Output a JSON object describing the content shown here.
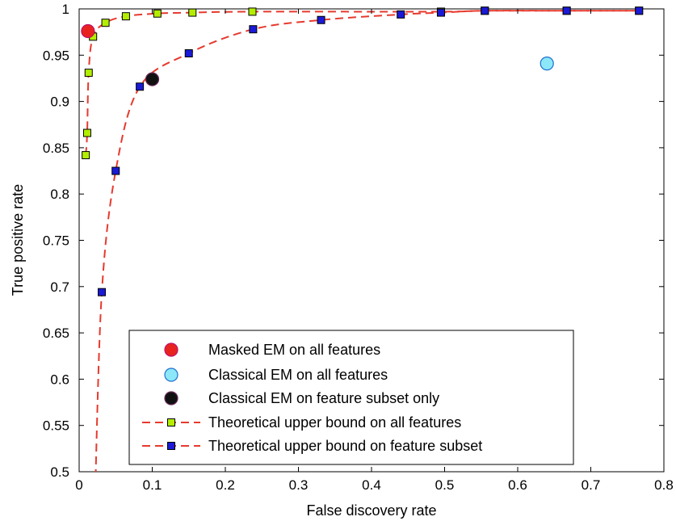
{
  "chart_data": {
    "type": "scatter",
    "xlabel": "False discovery rate",
    "ylabel": "True positive rate",
    "xlim": [
      0,
      0.8
    ],
    "ylim": [
      0.5,
      1
    ],
    "xticks": [
      "0",
      "0.1",
      "0.2",
      "0.3",
      "0.4",
      "0.5",
      "0.6",
      "0.7",
      "0.8"
    ],
    "yticks": [
      "0.5",
      "0.55",
      "0.6",
      "0.65",
      "0.7",
      "0.75",
      "0.8",
      "0.85",
      "0.9",
      "0.95",
      "1"
    ],
    "grid": false,
    "legend_position": "lower-right",
    "series": [
      {
        "name": "Masked EM on all features",
        "kind": "point",
        "marker": "circle",
        "color": "#e8231f",
        "edge": "#c0106a",
        "x": [
          0.012
        ],
        "y": [
          0.976
        ]
      },
      {
        "name": "Classical EM on all features",
        "kind": "point",
        "marker": "circle",
        "color": "#8ce8f8",
        "edge": "#1f6fd0",
        "x": [
          0.64
        ],
        "y": [
          0.941
        ]
      },
      {
        "name": "Classical EM on feature subset only",
        "kind": "point",
        "marker": "circle",
        "color": "#111111",
        "edge": "#6a2a5a",
        "x": [
          0.1
        ],
        "y": [
          0.924
        ]
      },
      {
        "name": "Theoretical upper bound on all features",
        "kind": "line",
        "marker": "square",
        "color": "#b3ee00",
        "line_color": "#e63a2e",
        "x": [
          0.009,
          0.011,
          0.013,
          0.019,
          0.036,
          0.064,
          0.107,
          0.155,
          0.237,
          0.495,
          0.555,
          0.667,
          0.766
        ],
        "y": [
          0.842,
          0.866,
          0.931,
          0.97,
          0.985,
          0.992,
          0.995,
          0.996,
          0.997,
          0.997,
          0.998,
          0.998,
          0.998
        ]
      },
      {
        "name": "Theoretical upper bound on feature subset",
        "kind": "line",
        "marker": "square",
        "color": "#1a1ad6",
        "line_color": "#e63a2e",
        "x": [
          0.031,
          0.05,
          0.083,
          0.15,
          0.238,
          0.331,
          0.44,
          0.495,
          0.555,
          0.667,
          0.766
        ],
        "y": [
          0.694,
          0.825,
          0.916,
          0.952,
          0.978,
          0.988,
          0.994,
          0.996,
          0.998,
          0.998,
          0.998
        ]
      }
    ]
  }
}
